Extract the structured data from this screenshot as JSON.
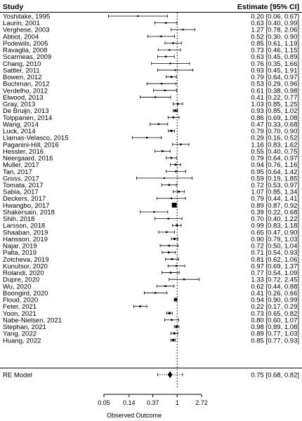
{
  "chart_data": {
    "type": "forest",
    "header": {
      "study": "Study",
      "estimate": "Estimate [95% CI]"
    },
    "xlabel": "Observed Outcome",
    "x_scale": "log",
    "x_ticks": [
      0.05,
      0.14,
      0.37,
      1,
      2.72
    ],
    "x_tick_labels": [
      "0.05",
      "0.14",
      "0.37",
      "1",
      "2.72"
    ],
    "reference_line": 1,
    "studies": [
      {
        "label": "Yoshitake, 1995",
        "est": 0.2,
        "lo": 0.06,
        "hi": 0.67,
        "text": "0.20 [0.06, 0.67]"
      },
      {
        "label": "Laurin, 2001",
        "est": 0.63,
        "lo": 0.4,
        "hi": 0.99,
        "text": "0.63 [0.40, 0.99]"
      },
      {
        "label": "Verghese, 2003",
        "est": 1.27,
        "lo": 0.78,
        "hi": 2.06,
        "text": "1.27 [0.78, 2.06]"
      },
      {
        "label": "Abbot, 2004",
        "est": 0.52,
        "lo": 0.3,
        "hi": 0.9,
        "text": "0.52 [0.30, 0.90]"
      },
      {
        "label": "Podewils, 2005",
        "est": 0.85,
        "lo": 0.61,
        "hi": 1.19,
        "text": "0.85 [0.61, 1.19]"
      },
      {
        "label": "Ravaglia, 2008",
        "est": 0.73,
        "lo": 0.46,
        "hi": 1.15,
        "text": "0.73 [0.46, 1.15]"
      },
      {
        "label": "Scarmeas, 2009",
        "est": 0.63,
        "lo": 0.45,
        "hi": 0.89,
        "text": "0.63 [0.45, 0.89]"
      },
      {
        "label": "Chang, 2010",
        "est": 0.76,
        "lo": 0.35,
        "hi": 1.66,
        "text": "0.76 [0.35, 1.66]"
      },
      {
        "label": "Sattler, 2011",
        "est": 0.93,
        "lo": 0.45,
        "hi": 1.91,
        "text": "0.93 [0.45, 1.91]"
      },
      {
        "label": "Bowen, 2012",
        "est": 0.79,
        "lo": 0.64,
        "hi": 0.97,
        "text": "0.79 [0.64, 0.97]"
      },
      {
        "label": "Buchman, 2012",
        "est": 0.53,
        "lo": 0.29,
        "hi": 0.96,
        "text": "0.53 [0.29, 0.96]"
      },
      {
        "label": "Verdelho, 2012",
        "est": 0.61,
        "lo": 0.38,
        "hi": 0.98,
        "text": "0.61 [0.38, 0.98]"
      },
      {
        "label": "Elwood, 2013",
        "est": 0.41,
        "lo": 0.22,
        "hi": 0.77,
        "text": "0.41 [0.22, 0.77]"
      },
      {
        "label": "Gray, 2013",
        "est": 1.03,
        "lo": 0.85,
        "hi": 1.25,
        "text": "1.03 [0.85, 1.25]"
      },
      {
        "label": "De Bruijn, 2013",
        "est": 0.93,
        "lo": 0.85,
        "hi": 1.02,
        "text": "0.93 [0.85, 1.02]"
      },
      {
        "label": "Tolppanen, 2014",
        "est": 0.86,
        "lo": 0.69,
        "hi": 1.08,
        "text": "0.86 [0.69, 1.08]"
      },
      {
        "label": "Wang, 2014",
        "est": 0.47,
        "lo": 0.33,
        "hi": 0.68,
        "text": "0.47 [0.33, 0.68]"
      },
      {
        "label": "Luck, 2014",
        "est": 0.79,
        "lo": 0.7,
        "hi": 0.9,
        "text": "0.79 [0.70, 0.90]"
      },
      {
        "label": "Llamas-Velasco, 2015",
        "est": 0.29,
        "lo": 0.16,
        "hi": 0.52,
        "text": "0.29 [0.16, 0.52]"
      },
      {
        "label": "Paganini-Hill, 2016",
        "est": 1.16,
        "lo": 0.83,
        "hi": 1.62,
        "text": "1.16 [0.83, 1.62]"
      },
      {
        "label": "Hessler, 2016",
        "est": 0.55,
        "lo": 0.4,
        "hi": 0.75,
        "text": "0.55 [0.40, 0.75]"
      },
      {
        "label": "Neergaard, 2016",
        "est": 0.79,
        "lo": 0.64,
        "hi": 0.97,
        "text": "0.79 [0.64, 0.97]"
      },
      {
        "label": "Muller, 2017",
        "est": 0.94,
        "lo": 0.76,
        "hi": 1.16,
        "text": "0.94 [0.76, 1.16]"
      },
      {
        "label": "Tan, 2017",
        "est": 0.95,
        "lo": 0.64,
        "hi": 1.42,
        "text": "0.95 [0.64, 1.42]"
      },
      {
        "label": "Gross, 2017",
        "est": 0.59,
        "lo": 0.19,
        "hi": 1.85,
        "text": "0.59 [0.19, 1.85]"
      },
      {
        "label": "Tomata, 2017",
        "est": 0.72,
        "lo": 0.53,
        "hi": 0.97,
        "text": "0.72 [0.53, 0.97]"
      },
      {
        "label": "Sabia, 2017",
        "est": 1.07,
        "lo": 0.85,
        "hi": 1.34,
        "text": "1.07 [0.85, 1.34]"
      },
      {
        "label": "Deckers, 2017",
        "est": 0.79,
        "lo": 0.44,
        "hi": 1.41,
        "text": "0.79 [0.44, 1.41]"
      },
      {
        "label": "Hwangbo, 2017",
        "est": 0.89,
        "lo": 0.87,
        "hi": 0.92,
        "text": "0.89 [0.87, 0.92]"
      },
      {
        "label": "Shakersain, 2018",
        "est": 0.39,
        "lo": 0.22,
        "hi": 0.68,
        "text": "0.39 [0.22, 0.68]"
      },
      {
        "label": "Shih, 2018",
        "est": 0.7,
        "lo": 0.4,
        "hi": 1.22,
        "text": "0.70 [0.40, 1.22]"
      },
      {
        "label": "Larsson, 2018",
        "est": 0.99,
        "lo": 0.83,
        "hi": 1.18,
        "text": "0.99 [0.83, 1.18]"
      },
      {
        "label": "Shaaban, 2019",
        "est": 0.65,
        "lo": 0.47,
        "hi": 0.9,
        "text": "0.65 [0.47, 0.90]"
      },
      {
        "label": "Hansson, 2019",
        "est": 0.9,
        "lo": 0.79,
        "hi": 1.03,
        "text": "0.90 [0.79, 1.03]"
      },
      {
        "label": "Najar, 2019",
        "est": 0.72,
        "lo": 0.5,
        "hi": 1.04,
        "text": "0.72 [0.50, 1.04]"
      },
      {
        "label": "Palta, 2019",
        "est": 0.71,
        "lo": 0.54,
        "hi": 0.93,
        "text": "0.71 [0.54, 0.93]"
      },
      {
        "label": "Zotcheva, 2019",
        "est": 0.81,
        "lo": 0.62,
        "hi": 1.06,
        "text": "0.81 [0.62, 1.06]"
      },
      {
        "label": "Kunutsor, 2020",
        "est": 0.97,
        "lo": 0.69,
        "hi": 1.37,
        "text": "0.97 [0.69, 1.37]"
      },
      {
        "label": "Rolandi, 2020",
        "est": 0.77,
        "lo": 0.54,
        "hi": 1.09,
        "text": "0.77 [0.54, 1.09]"
      },
      {
        "label": "Dupre, 2020",
        "est": 1.33,
        "lo": 0.72,
        "hi": 2.45,
        "text": "1.33 [0.72, 2.45]"
      },
      {
        "label": "Wu, 2020",
        "est": 0.62,
        "lo": 0.44,
        "hi": 0.88,
        "text": "0.62 [0.44, 0.88]"
      },
      {
        "label": "Boongird, 2020",
        "est": 0.41,
        "lo": 0.26,
        "hi": 0.66,
        "text": "0.41 [0.26, 0.66]"
      },
      {
        "label": "Floud, 2020",
        "est": 0.94,
        "lo": 0.9,
        "hi": 0.99,
        "text": "0.94 [0.90, 0.99]"
      },
      {
        "label": "Feter, 2021",
        "est": 0.22,
        "lo": 0.17,
        "hi": 0.29,
        "text": "0.22 [0.17, 0.29]"
      },
      {
        "label": "Yoon, 2021",
        "est": 0.73,
        "lo": 0.65,
        "hi": 0.82,
        "text": "0.73 [0.65, 0.82]"
      },
      {
        "label": "Nabe-Nielsen, 2021",
        "est": 0.8,
        "lo": 0.6,
        "hi": 1.07,
        "text": "0.80 [0.60, 1.07]"
      },
      {
        "label": "Stephan, 2021",
        "est": 0.98,
        "lo": 0.89,
        "hi": 1.08,
        "text": "0.98 [0.89, 1.08]"
      },
      {
        "label": "Yang, 2022",
        "est": 0.89,
        "lo": 0.77,
        "hi": 1.03,
        "text": "0.89 [0.77, 1.03]"
      },
      {
        "label": "Huang, 2022",
        "est": 0.85,
        "lo": 0.77,
        "hi": 0.93,
        "text": "0.85 [0.77, 0.93]"
      }
    ],
    "summary": {
      "label": "RE Model",
      "est": 0.75,
      "lo": 0.68,
      "hi": 0.82,
      "pi_lo": 0.45,
      "pi_hi": 1.25,
      "text": "0.75 [0.68, 0.82]"
    }
  }
}
